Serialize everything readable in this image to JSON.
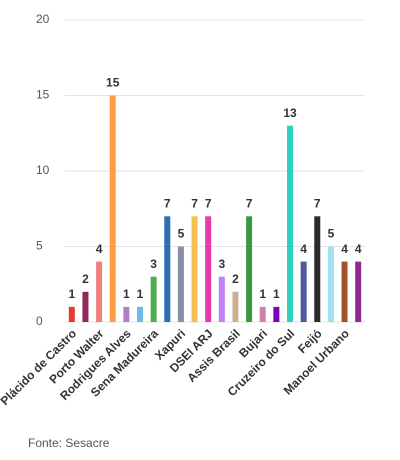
{
  "chart_data": {
    "type": "bar",
    "categories": [
      "Plácido de Castro",
      null,
      "Porto Walter",
      null,
      "Rodrigues Alves",
      null,
      "Sena Madureira",
      null,
      "Xapuri",
      null,
      "DSEI ARJ",
      null,
      "Assis Brasil",
      null,
      "Bujari",
      null,
      "Cruzeiro do Sul",
      null,
      "Feijó",
      null,
      "Manoel Urbano",
      null
    ],
    "values": [
      1,
      2,
      4,
      15,
      1,
      1,
      3,
      7,
      5,
      7,
      7,
      3,
      2,
      7,
      1,
      1,
      13,
      4,
      7,
      5,
      4,
      4
    ],
    "colors": [
      "#e53935",
      "#8e2a5a",
      "#f08080",
      "#ffa040",
      "#b57cc8",
      "#6fb8e6",
      "#4caf50",
      "#2d6db5",
      "#8a8fa8",
      "#f5c050",
      "#e83aa8",
      "#c080f0",
      "#c8b090",
      "#3a9a40",
      "#d080b0",
      "#8000c0",
      "#30d0c0",
      "#4a5a9a",
      "#2a2a2a",
      "#a0e0f0",
      "#a0522d",
      "#8e2a90"
    ],
    "ylim": [
      0,
      20
    ],
    "yticks": [
      0,
      5,
      10,
      15,
      20
    ],
    "grid": true,
    "source": "Fonte: Sesacre"
  }
}
